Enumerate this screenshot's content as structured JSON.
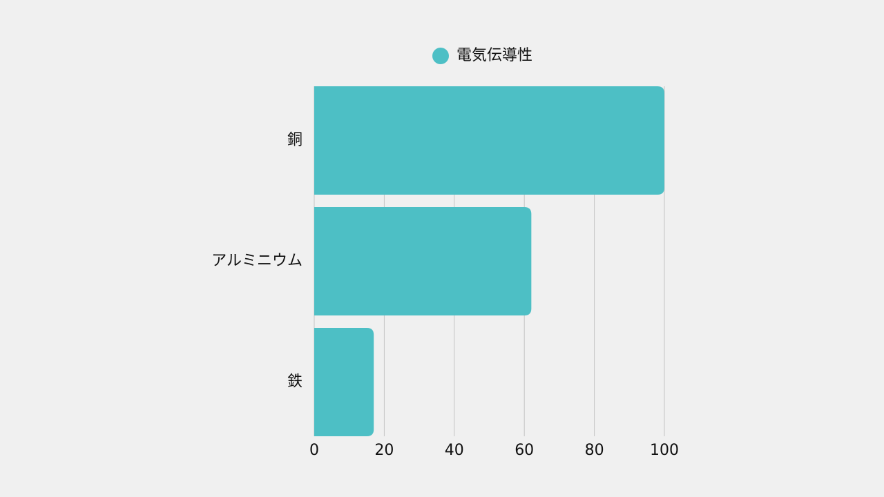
{
  "chart_data": {
    "type": "bar",
    "orientation": "horizontal",
    "categories": [
      "銅",
      "アルミニウム",
      "鉄"
    ],
    "series": [
      {
        "name": "電気伝導性",
        "color": "#4dbfc5",
        "values": [
          100,
          62,
          17
        ]
      }
    ],
    "xlim": [
      0,
      100
    ],
    "xticks": [
      0,
      20,
      40,
      60,
      80,
      100
    ],
    "grid": true,
    "legend": "top"
  }
}
